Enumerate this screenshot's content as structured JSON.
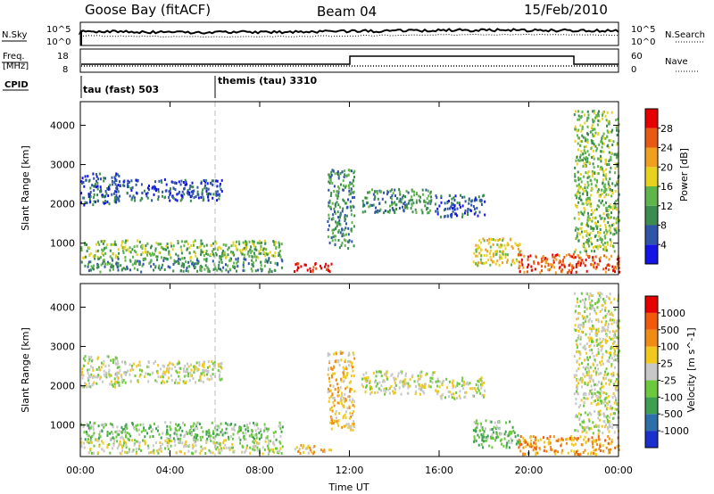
{
  "header": {
    "station": "Goose Bay (fitACF)",
    "beam": "Beam 04",
    "date": "15/Feb/2010"
  },
  "panels": {
    "nsky": {
      "label": "N.Sky",
      "ticks_left": [
        "10^5",
        "10^0"
      ],
      "ticks_right": [
        "10^5",
        "10^0"
      ],
      "right_label": "N.Search"
    },
    "freq": {
      "label_top": "Freq.",
      "label_bottom": "[MHz]",
      "ticks_left": [
        "18",
        "8"
      ],
      "ticks_right": [
        "60",
        "0"
      ],
      "right_label": "Nave"
    },
    "cpid": {
      "label": "CPID",
      "entries": [
        {
          "text": "tau (fast) 503",
          "start_hour": 0
        },
        {
          "text": "themis (tau) 3310",
          "start_hour": 6
        }
      ]
    }
  },
  "chart_data": [
    {
      "type": "heatmap",
      "name": "power",
      "ylabel": "Slant Range [km]",
      "xlim": [
        0,
        24
      ],
      "ylim": [
        200,
        4600
      ],
      "yticks": [
        1000,
        2000,
        3000,
        4000
      ],
      "colorbar": {
        "label": "Power [dB]",
        "ticks": [
          4,
          8,
          12,
          16,
          20,
          24,
          28
        ],
        "range": [
          0,
          32
        ],
        "colors": [
          "#1414e6",
          "#2e55a8",
          "#3c8c50",
          "#5fb44a",
          "#e8d21e",
          "#f0a01e",
          "#e85a14",
          "#e60000"
        ]
      },
      "clusters": [
        {
          "t0": 0.0,
          "t1": 1.7,
          "r0": 2000,
          "r1": 2800,
          "level": 1
        },
        {
          "t0": 1.5,
          "t1": 6.3,
          "r0": 2100,
          "r1": 2650,
          "level": 1
        },
        {
          "t0": 0.0,
          "t1": 9.0,
          "r0": 650,
          "r1": 1100,
          "level": 3
        },
        {
          "t0": 0.0,
          "t1": 9.0,
          "r0": 300,
          "r1": 650,
          "level": 2
        },
        {
          "t0": 9.5,
          "t1": 11.2,
          "r0": 300,
          "r1": 520,
          "level": 7
        },
        {
          "t0": 11.0,
          "t1": 12.2,
          "r0": 900,
          "r1": 2900,
          "level": 2
        },
        {
          "t0": 12.5,
          "t1": 15.8,
          "r0": 1800,
          "r1": 2400,
          "level": 2
        },
        {
          "t0": 15.8,
          "t1": 18.0,
          "r0": 1700,
          "r1": 2250,
          "level": 1
        },
        {
          "t0": 17.5,
          "t1": 19.6,
          "r0": 450,
          "r1": 1150,
          "level": 4
        },
        {
          "t0": 19.5,
          "t1": 24.0,
          "r0": 280,
          "r1": 750,
          "level": 6
        },
        {
          "t0": 22.0,
          "t1": 24.0,
          "r0": 800,
          "r1": 4400,
          "level": 3
        }
      ]
    },
    {
      "type": "heatmap",
      "name": "velocity",
      "xlabel": "Time UT",
      "ylabel": "Slant Range [km]",
      "xlim": [
        0,
        24
      ],
      "ylim": [
        200,
        4600
      ],
      "xticks": [
        "00:00",
        "04:00",
        "08:00",
        "12:00",
        "16:00",
        "20:00",
        "00:00"
      ],
      "yticks": [
        1000,
        2000,
        3000,
        4000
      ],
      "colorbar": {
        "label": "Velocity [m s^-1]",
        "ticks": [
          "1000",
          "500",
          "100",
          "25",
          "-25",
          "-100",
          "-500",
          "-1000"
        ],
        "colors": [
          "#1a2fcc",
          "#2d6fa8",
          "#3ca050",
          "#6cc83c",
          "#c8c8c8",
          "#f0c81e",
          "#f08c14",
          "#f05a0a",
          "#e60000"
        ]
      },
      "clusters": [
        {
          "t0": 0.0,
          "t1": 1.7,
          "r0": 2000,
          "r1": 2800,
          "level": 4
        },
        {
          "t0": 1.5,
          "t1": 6.3,
          "r0": 2100,
          "r1": 2650,
          "level": 4
        },
        {
          "t0": 0.0,
          "t1": 9.0,
          "r0": 650,
          "r1": 1100,
          "level": 3
        },
        {
          "t0": 0.0,
          "t1": 9.0,
          "r0": 300,
          "r1": 650,
          "level": 4
        },
        {
          "t0": 9.5,
          "t1": 11.2,
          "r0": 300,
          "r1": 520,
          "level": 5
        },
        {
          "t0": 11.0,
          "t1": 12.2,
          "r0": 900,
          "r1": 2900,
          "level": 5
        },
        {
          "t0": 12.5,
          "t1": 15.8,
          "r0": 1800,
          "r1": 2400,
          "level": 4
        },
        {
          "t0": 15.8,
          "t1": 18.0,
          "r0": 1700,
          "r1": 2250,
          "level": 4
        },
        {
          "t0": 17.5,
          "t1": 19.6,
          "r0": 450,
          "r1": 1150,
          "level": 3
        },
        {
          "t0": 19.5,
          "t1": 24.0,
          "r0": 280,
          "r1": 750,
          "level": 6
        },
        {
          "t0": 22.0,
          "t1": 24.0,
          "r0": 800,
          "r1": 4400,
          "level": 4
        }
      ]
    }
  ]
}
